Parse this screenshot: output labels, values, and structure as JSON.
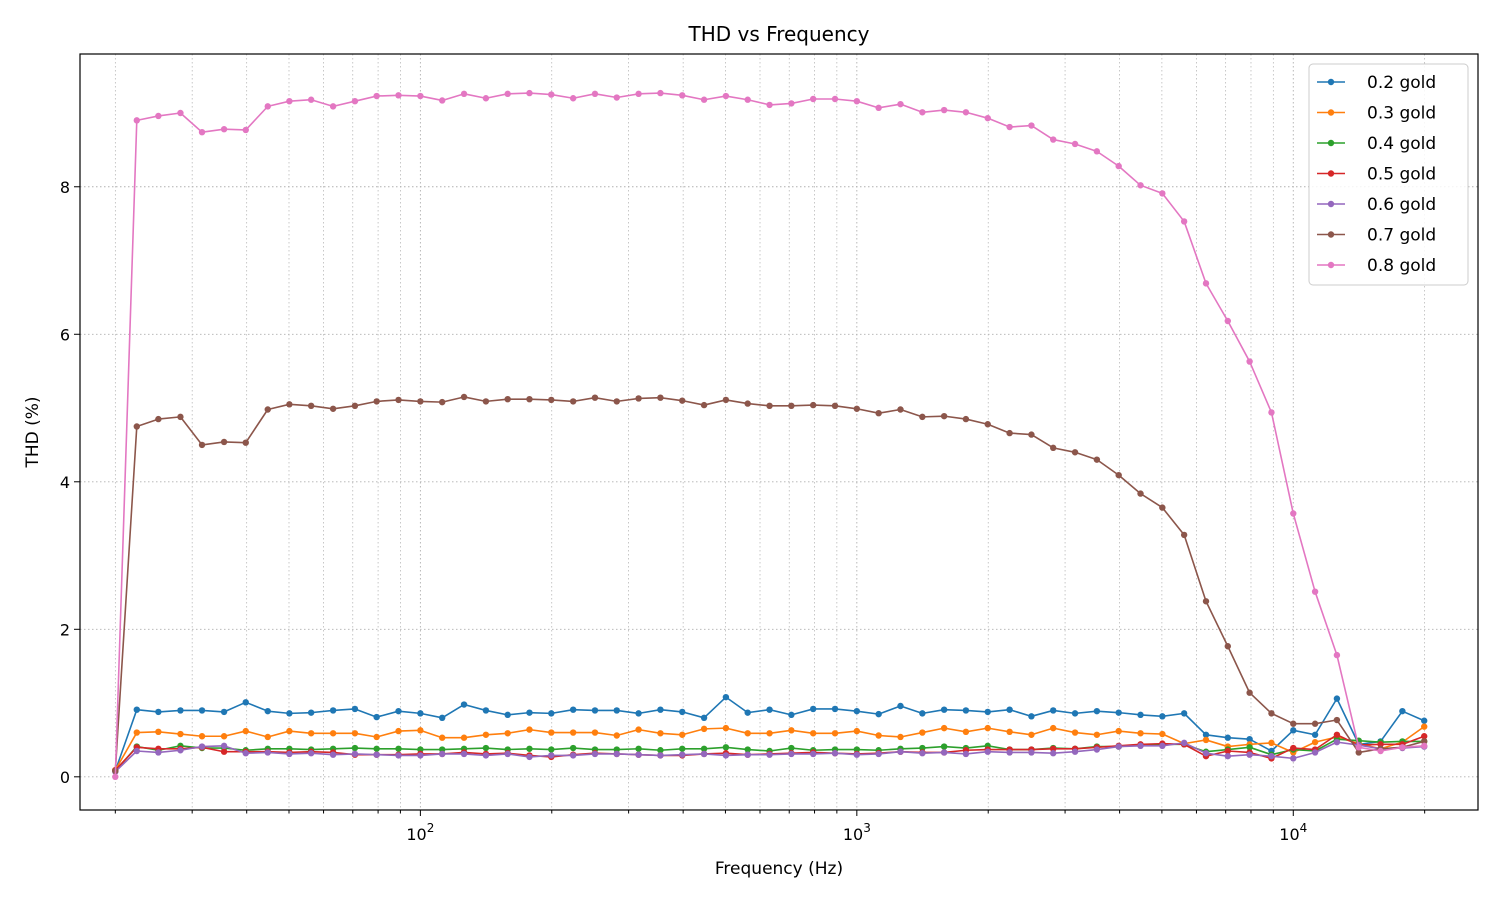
{
  "chart_data": {
    "type": "line",
    "title": "THD vs Frequency",
    "xlabel": "Frequency (Hz)",
    "ylabel": "THD (%)",
    "xscale": "log",
    "xlim": [
      16.6,
      26500
    ],
    "ylim": [
      -0.45,
      9.8
    ],
    "x_major_ticks": [
      {
        "value": 100,
        "base": "10",
        "exp": "2"
      },
      {
        "value": 1000,
        "base": "10",
        "exp": "3"
      },
      {
        "value": 10000,
        "base": "10",
        "exp": "4"
      }
    ],
    "y_ticks": [
      0,
      2,
      4,
      6,
      8
    ],
    "grid": true,
    "legend_position": "upper right",
    "x": [
      20,
      22.4,
      25.1,
      28.2,
      31.6,
      35.5,
      39.8,
      44.7,
      50.1,
      56.2,
      63.1,
      70.8,
      79.4,
      89.1,
      100,
      112.2,
      125.9,
      141.3,
      158.5,
      177.8,
      199.5,
      223.9,
      251.2,
      281.8,
      316.2,
      354.8,
      398.1,
      446.7,
      501.2,
      562.3,
      631,
      707.9,
      794.3,
      891.3,
      1000,
      1122,
      1259,
      1413,
      1585,
      1778,
      1995,
      2239,
      2512,
      2818,
      3162,
      3548,
      3981,
      4467,
      5012,
      5623,
      6310,
      7079,
      7943,
      8913,
      10000,
      11220,
      12589,
      14125,
      15849,
      17783,
      19953
    ],
    "series": [
      {
        "name": "0.2 gold",
        "color": "#1f77b4",
        "values": [
          0.08,
          0.91,
          0.88,
          0.9,
          0.9,
          0.88,
          1.01,
          0.89,
          0.86,
          0.87,
          0.9,
          0.92,
          0.81,
          0.89,
          0.86,
          0.8,
          0.98,
          0.9,
          0.84,
          0.87,
          0.86,
          0.91,
          0.9,
          0.9,
          0.86,
          0.91,
          0.88,
          0.8,
          1.08,
          0.87,
          0.91,
          0.84,
          0.92,
          0.92,
          0.89,
          0.85,
          0.96,
          0.86,
          0.91,
          0.9,
          0.88,
          0.91,
          0.82,
          0.9,
          0.86,
          0.89,
          0.87,
          0.84,
          0.82,
          0.86,
          0.57,
          0.53,
          0.51,
          0.35,
          0.63,
          0.57,
          1.06,
          0.44,
          0.48,
          0.89,
          0.76
        ]
      },
      {
        "name": "0.3 gold",
        "color": "#ff7f0e",
        "values": [
          0.09,
          0.6,
          0.61,
          0.58,
          0.55,
          0.55,
          0.62,
          0.54,
          0.62,
          0.59,
          0.59,
          0.59,
          0.54,
          0.62,
          0.63,
          0.53,
          0.53,
          0.57,
          0.59,
          0.64,
          0.6,
          0.6,
          0.6,
          0.56,
          0.64,
          0.59,
          0.57,
          0.65,
          0.66,
          0.59,
          0.59,
          0.63,
          0.59,
          0.59,
          0.62,
          0.56,
          0.54,
          0.6,
          0.66,
          0.61,
          0.66,
          0.61,
          0.57,
          0.66,
          0.6,
          0.57,
          0.62,
          0.59,
          0.58,
          0.45,
          0.5,
          0.41,
          0.44,
          0.46,
          0.33,
          0.47,
          0.54,
          0.45,
          0.38,
          0.47,
          0.68
        ]
      },
      {
        "name": "0.4 gold",
        "color": "#2ca02c",
        "values": [
          0.08,
          0.41,
          0.36,
          0.42,
          0.39,
          0.39,
          0.36,
          0.38,
          0.38,
          0.37,
          0.38,
          0.39,
          0.38,
          0.38,
          0.37,
          0.37,
          0.38,
          0.39,
          0.37,
          0.38,
          0.37,
          0.39,
          0.37,
          0.37,
          0.38,
          0.36,
          0.38,
          0.38,
          0.4,
          0.37,
          0.35,
          0.39,
          0.36,
          0.37,
          0.37,
          0.36,
          0.38,
          0.39,
          0.41,
          0.39,
          0.42,
          0.37,
          0.37,
          0.39,
          0.38,
          0.41,
          0.41,
          0.43,
          0.44,
          0.44,
          0.34,
          0.37,
          0.4,
          0.3,
          0.37,
          0.35,
          0.51,
          0.49,
          0.47,
          0.48,
          0.48
        ]
      },
      {
        "name": "0.5 gold",
        "color": "#d62728",
        "values": [
          0.09,
          0.4,
          0.38,
          0.38,
          0.4,
          0.34,
          0.34,
          0.34,
          0.33,
          0.34,
          0.33,
          0.3,
          0.3,
          0.3,
          0.31,
          0.31,
          0.33,
          0.31,
          0.32,
          0.29,
          0.27,
          0.3,
          0.32,
          0.31,
          0.3,
          0.29,
          0.29,
          0.31,
          0.32,
          0.3,
          0.31,
          0.32,
          0.33,
          0.32,
          0.31,
          0.32,
          0.34,
          0.33,
          0.33,
          0.36,
          0.37,
          0.37,
          0.37,
          0.38,
          0.38,
          0.4,
          0.42,
          0.44,
          0.45,
          0.44,
          0.28,
          0.35,
          0.33,
          0.25,
          0.39,
          0.37,
          0.57,
          0.43,
          0.44,
          0.44,
          0.55
        ]
      },
      {
        "name": "0.6 gold",
        "color": "#9467bd",
        "values": [
          0.07,
          0.35,
          0.33,
          0.36,
          0.41,
          0.42,
          0.32,
          0.33,
          0.31,
          0.32,
          0.3,
          0.31,
          0.3,
          0.29,
          0.29,
          0.31,
          0.31,
          0.29,
          0.31,
          0.27,
          0.29,
          0.29,
          0.31,
          0.31,
          0.3,
          0.29,
          0.3,
          0.31,
          0.29,
          0.3,
          0.3,
          0.31,
          0.31,
          0.32,
          0.3,
          0.31,
          0.34,
          0.32,
          0.33,
          0.31,
          0.34,
          0.33,
          0.33,
          0.32,
          0.34,
          0.37,
          0.41,
          0.42,
          0.42,
          0.46,
          0.32,
          0.28,
          0.3,
          0.28,
          0.25,
          0.33,
          0.47,
          0.43,
          0.38,
          0.39,
          0.41
        ]
      },
      {
        "name": "0.7 gold",
        "color": "#8c564b",
        "values": [
          0.08,
          4.75,
          4.85,
          4.88,
          4.5,
          4.54,
          4.53,
          4.98,
          5.05,
          5.03,
          4.99,
          5.03,
          5.09,
          5.11,
          5.09,
          5.08,
          5.15,
          5.09,
          5.12,
          5.12,
          5.11,
          5.09,
          5.14,
          5.09,
          5.13,
          5.14,
          5.1,
          5.04,
          5.11,
          5.06,
          5.03,
          5.03,
          5.04,
          5.03,
          4.99,
          4.93,
          4.98,
          4.88,
          4.89,
          4.85,
          4.78,
          4.66,
          4.64,
          4.46,
          4.4,
          4.3,
          4.09,
          3.84,
          3.65,
          3.28,
          2.38,
          1.77,
          1.14,
          0.86,
          0.72,
          0.72,
          0.77,
          0.33,
          0.38,
          0.4,
          0.48
        ]
      },
      {
        "name": "0.8 gold",
        "color": "#e377c2",
        "values": [
          0.0,
          8.9,
          8.96,
          9.0,
          8.74,
          8.78,
          8.77,
          9.09,
          9.16,
          9.18,
          9.09,
          9.16,
          9.23,
          9.24,
          9.23,
          9.17,
          9.26,
          9.2,
          9.26,
          9.27,
          9.25,
          9.2,
          9.26,
          9.21,
          9.26,
          9.27,
          9.24,
          9.18,
          9.23,
          9.18,
          9.11,
          9.13,
          9.19,
          9.19,
          9.16,
          9.07,
          9.12,
          9.01,
          9.04,
          9.01,
          8.93,
          8.81,
          8.83,
          8.64,
          8.58,
          8.48,
          8.28,
          8.02,
          7.91,
          7.53,
          6.69,
          6.18,
          5.63,
          4.94,
          3.57,
          2.51,
          1.65,
          0.4,
          0.35,
          0.4,
          0.42
        ]
      }
    ]
  }
}
